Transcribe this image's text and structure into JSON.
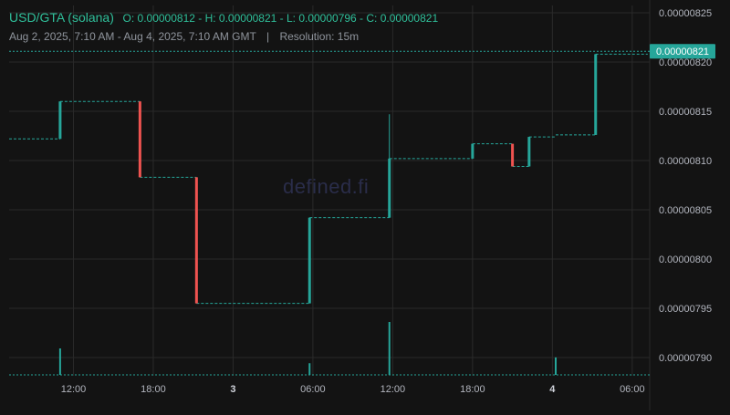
{
  "header": {
    "pair": "USD/GTA (solana)",
    "ohlc_text": "O: 0.00000812 - H: 0.00000821 - L: 0.00000796 - C: 0.00000821",
    "date_range": "Aug 2, 2025, 7:10 AM - Aug 4, 2025, 7:10 AM GMT",
    "separator": "|",
    "resolution": "Resolution: 15m"
  },
  "watermark": "defined.fi",
  "colors": {
    "up": "#26a69a",
    "down": "#ef5350",
    "background": "#131313",
    "grid": "#2a2a2a",
    "axis_text": "#b2b5be",
    "last_price_bg": "#26a69a"
  },
  "chart_data": {
    "type": "candlestick",
    "title": "USD/GTA (solana)",
    "resolution": "15m",
    "x_tick_labels": [
      "12:00",
      "18:00",
      "3",
      "06:00",
      "12:00",
      "18:00",
      "4",
      "06:00"
    ],
    "y_tick_labels": [
      "0.00000825",
      "0.00000820",
      "0.00000815",
      "0.00000810",
      "0.00000805",
      "0.00000800",
      "0.00000795",
      "0.00000790"
    ],
    "ylim": [
      7.89e-06,
      8.26e-06
    ],
    "last_price": "0.00000821",
    "grid": true,
    "segments": [
      {
        "start": "Aug 2 07:10",
        "end": "Aug 2 11:00",
        "level": 8.122e-06
      },
      {
        "start": "Aug 2 11:00",
        "end": "Aug 2 17:00",
        "level": 8.16e-06
      },
      {
        "start": "Aug 2 17:00",
        "end": "Aug 2 21:15",
        "level": 8.083e-06
      },
      {
        "start": "Aug 2 21:15",
        "end": "Aug 3 05:45",
        "level": 7.955e-06
      },
      {
        "start": "Aug 3 05:45",
        "end": "Aug 3 11:45",
        "level": 8.042e-06
      },
      {
        "start": "Aug 3 11:45",
        "end": "Aug 3 18:00",
        "level": 8.102e-06
      },
      {
        "start": "Aug 3 18:00",
        "end": "Aug 3 21:00",
        "level": 8.117e-06
      },
      {
        "start": "Aug 3 21:00",
        "end": "Aug 3 22:15",
        "level": 8.094e-06
      },
      {
        "start": "Aug 3 22:15",
        "end": "Aug 4 00:15",
        "level": 8.124e-06
      },
      {
        "start": "Aug 4 00:15",
        "end": "Aug 4 03:15",
        "level": 8.126e-06
      },
      {
        "start": "Aug 4 03:15",
        "end": "Aug 4 07:10",
        "level": 8.208e-06
      }
    ],
    "candles": [
      {
        "time": "Aug 2 11:00",
        "open": 8.122e-06,
        "close": 8.16e-06,
        "high": 8.16e-06,
        "low": 8.122e-06
      },
      {
        "time": "Aug 2 17:00",
        "open": 8.16e-06,
        "close": 8.083e-06,
        "high": 8.16e-06,
        "low": 8.083e-06
      },
      {
        "time": "Aug 2 21:15",
        "open": 8.083e-06,
        "close": 7.955e-06,
        "high": 8.083e-06,
        "low": 7.955e-06
      },
      {
        "time": "Aug 3 05:45",
        "open": 7.955e-06,
        "close": 8.042e-06,
        "high": 8.042e-06,
        "low": 7.955e-06
      },
      {
        "time": "Aug 3 11:45",
        "open": 8.042e-06,
        "close": 8.102e-06,
        "high": 8.147e-06,
        "low": 8.042e-06
      },
      {
        "time": "Aug 3 18:00",
        "open": 8.102e-06,
        "close": 8.117e-06,
        "high": 8.117e-06,
        "low": 8.102e-06
      },
      {
        "time": "Aug 3 21:00",
        "open": 8.117e-06,
        "close": 8.094e-06,
        "high": 8.117e-06,
        "low": 8.094e-06
      },
      {
        "time": "Aug 3 22:15",
        "open": 8.094e-06,
        "close": 8.124e-06,
        "high": 8.124e-06,
        "low": 8.094e-06
      },
      {
        "time": "Aug 4 03:15",
        "open": 8.126e-06,
        "close": 8.208e-06,
        "high": 8.208e-06,
        "low": 8.126e-06
      }
    ],
    "volume": [
      {
        "time": "Aug 2 11:00",
        "relative": 0.5
      },
      {
        "time": "Aug 3 05:45",
        "relative": 0.22
      },
      {
        "time": "Aug 3 11:45",
        "relative": 1.0
      },
      {
        "time": "Aug 4 00:15",
        "relative": 0.33
      }
    ]
  }
}
